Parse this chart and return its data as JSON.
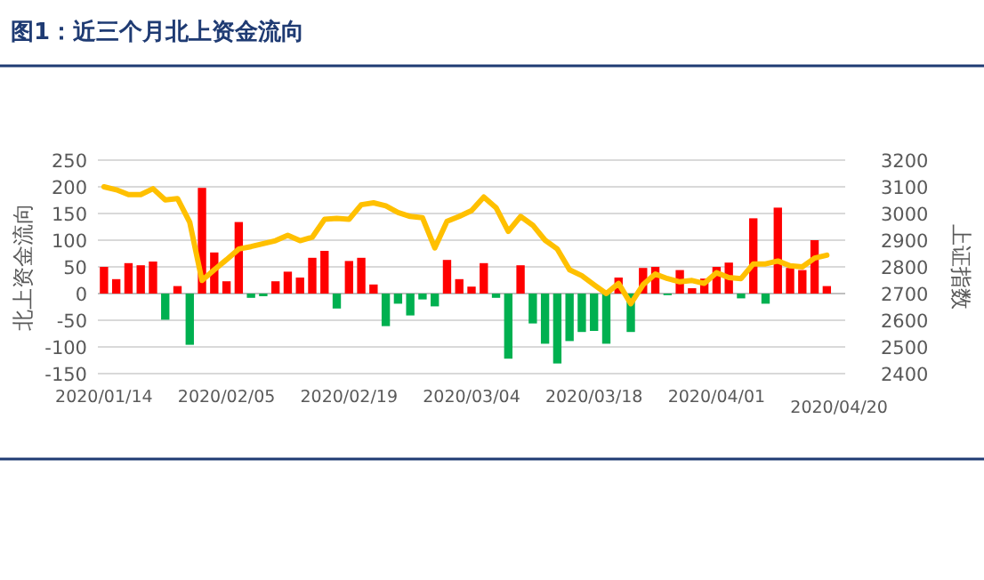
{
  "chart_data": {
    "type": "bar",
    "title": "图1：近三个月北上资金流向",
    "ylabel": "北上资金流向",
    "y2label": "上证指数",
    "categories": [
      "2020/01/14",
      null,
      null,
      null,
      null,
      null,
      null,
      null,
      null,
      null,
      "2020/02/05",
      null,
      null,
      null,
      null,
      null,
      null,
      null,
      null,
      null,
      "2020/02/19",
      null,
      null,
      null,
      null,
      null,
      null,
      null,
      null,
      null,
      "2020/03/04",
      null,
      null,
      null,
      null,
      null,
      null,
      null,
      null,
      null,
      "2020/03/18",
      null,
      null,
      null,
      null,
      null,
      null,
      null,
      null,
      null,
      "2020/04/01",
      null,
      null,
      null,
      null,
      null,
      null,
      null,
      null,
      null,
      "2020/04/20"
    ],
    "series": [
      {
        "axis": "y",
        "values": [
          50,
          27,
          57,
          53,
          60,
          -49,
          14,
          -96,
          198,
          77,
          23,
          134,
          -8,
          -5,
          23,
          41,
          30,
          67,
          80,
          -28,
          61,
          67,
          17,
          -61,
          -19,
          -41,
          -11,
          -24,
          63,
          27,
          13,
          57,
          -8,
          -122,
          53,
          -56,
          -94,
          -131,
          -89,
          -72,
          -70,
          -94,
          30,
          -72,
          48,
          50,
          -3,
          44,
          10,
          28,
          50,
          58,
          -9,
          141,
          -19,
          161,
          48,
          44,
          100,
          14,
          null
        ],
        "colors": [
          "#ff0000",
          "#ff0000",
          "#ff0000",
          "#ff0000",
          "#ff0000",
          "#00b050",
          "#ff0000",
          "#00b050",
          "#ff0000",
          "#ff0000",
          "#ff0000",
          "#ff0000",
          "#00b050",
          "#00b050",
          "#ff0000",
          "#ff0000",
          "#ff0000",
          "#ff0000",
          "#ff0000",
          "#00b050",
          "#ff0000",
          "#ff0000",
          "#ff0000",
          "#00b050",
          "#00b050",
          "#00b050",
          "#00b050",
          "#00b050",
          "#ff0000",
          "#ff0000",
          "#ff0000",
          "#ff0000",
          "#00b050",
          "#00b050",
          "#ff0000",
          "#00b050",
          "#00b050",
          "#00b050",
          "#00b050",
          "#00b050",
          "#00b050",
          "#00b050",
          "#ff0000",
          "#00b050",
          "#ff0000",
          "#ff0000",
          "#00b050",
          "#ff0000",
          "#ff0000",
          "#ff0000",
          "#ff0000",
          "#ff0000",
          "#00b050",
          "#ff0000",
          "#00b050",
          "#ff0000",
          "#ff0000",
          "#ff0000",
          "#ff0000",
          "#ff0000",
          null
        ]
      },
      {
        "type": "line",
        "axis": "y2",
        "color": "#ffc000",
        "values": [
          3100,
          3089,
          3071,
          3071,
          3093,
          3051,
          3056,
          2967,
          2749,
          2789,
          2827,
          2867,
          2876,
          2887,
          2898,
          2918,
          2898,
          2911,
          2978,
          2982,
          2978,
          3033,
          3040,
          3029,
          3004,
          2989,
          2984,
          2871,
          2971,
          2989,
          3011,
          3062,
          3022,
          2933,
          2989,
          2956,
          2900,
          2867,
          2789,
          2767,
          2733,
          2700,
          2738,
          2662,
          2733,
          2773,
          2756,
          2744,
          2749,
          2738,
          2778,
          2760,
          2756,
          2811,
          2811,
          2822,
          2804,
          2800,
          2833,
          2844,
          null
        ]
      }
    ],
    "ylim": [
      -150,
      250
    ],
    "yticks": [
      -150,
      -100,
      -50,
      0,
      50,
      100,
      150,
      200,
      250
    ],
    "y2lim": [
      2400,
      3200
    ],
    "y2ticks": [
      2400,
      2500,
      2600,
      2700,
      2800,
      2900,
      3000,
      3100,
      3200
    ],
    "grid": "y"
  }
}
